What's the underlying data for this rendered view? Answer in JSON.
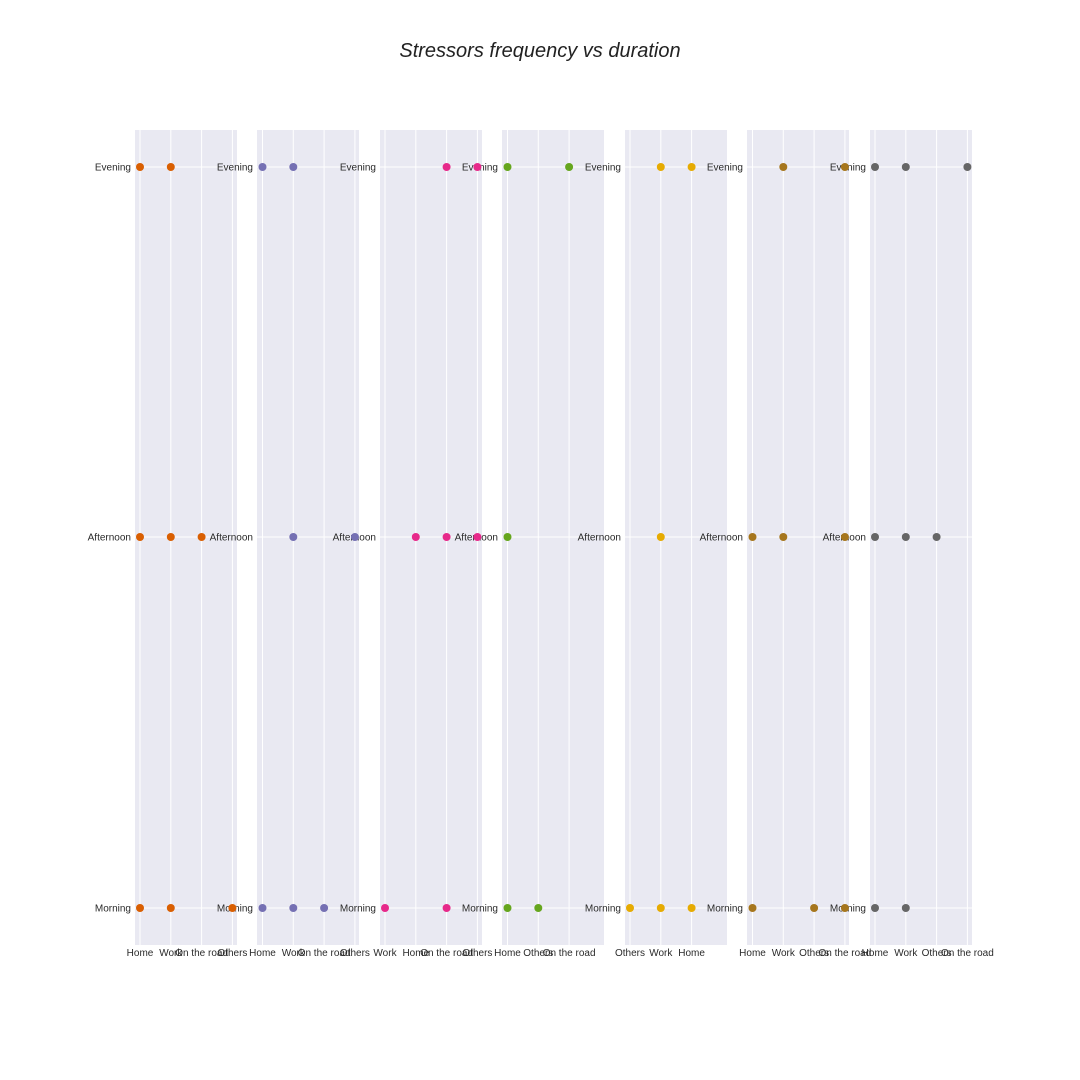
{
  "chart_data": {
    "type": "scatter",
    "title": "Stressors frequency vs duration",
    "y_categories": [
      "Morning",
      "Afternoon",
      "Evening"
    ],
    "background_color": "#e9e9f2",
    "grid": true,
    "panels": [
      {
        "color": "#d95f02",
        "x_categories": [
          "Home",
          "Work",
          "On the road",
          "Others"
        ],
        "points": [
          {
            "x": "Home",
            "y": "Evening"
          },
          {
            "x": "Work",
            "y": "Evening"
          },
          {
            "x": "Home",
            "y": "Afternoon"
          },
          {
            "x": "Work",
            "y": "Afternoon"
          },
          {
            "x": "On the road",
            "y": "Afternoon"
          },
          {
            "x": "Home",
            "y": "Morning"
          },
          {
            "x": "Work",
            "y": "Morning"
          },
          {
            "x": "Others",
            "y": "Morning"
          }
        ]
      },
      {
        "color": "#7570b3",
        "x_categories": [
          "Home",
          "Work",
          "On the road",
          "Others"
        ],
        "points": [
          {
            "x": "Home",
            "y": "Evening"
          },
          {
            "x": "Work",
            "y": "Evening"
          },
          {
            "x": "Work",
            "y": "Afternoon"
          },
          {
            "x": "Others",
            "y": "Afternoon"
          },
          {
            "x": "Home",
            "y": "Morning"
          },
          {
            "x": "Work",
            "y": "Morning"
          },
          {
            "x": "On the road",
            "y": "Morning"
          }
        ]
      },
      {
        "color": "#e7298a",
        "x_categories": [
          "Work",
          "Home",
          "On the road",
          "Others"
        ],
        "points": [
          {
            "x": "On the road",
            "y": "Evening"
          },
          {
            "x": "Others",
            "y": "Evening"
          },
          {
            "x": "Home",
            "y": "Afternoon"
          },
          {
            "x": "On the road",
            "y": "Afternoon"
          },
          {
            "x": "Others",
            "y": "Afternoon"
          },
          {
            "x": "Work",
            "y": "Morning"
          },
          {
            "x": "On the road",
            "y": "Morning"
          }
        ]
      },
      {
        "color": "#66a61e",
        "x_categories": [
          "Home",
          "Others",
          "On the road"
        ],
        "points": [
          {
            "x": "Home",
            "y": "Evening"
          },
          {
            "x": "On the road",
            "y": "Evening"
          },
          {
            "x": "Home",
            "y": "Afternoon"
          },
          {
            "x": "Home",
            "y": "Morning"
          },
          {
            "x": "Others",
            "y": "Morning"
          }
        ]
      },
      {
        "color": "#e6ab02",
        "x_categories": [
          "Others",
          "Work",
          "Home"
        ],
        "points": [
          {
            "x": "Work",
            "y": "Evening"
          },
          {
            "x": "Home",
            "y": "Evening"
          },
          {
            "x": "Work",
            "y": "Afternoon"
          },
          {
            "x": "Others",
            "y": "Morning"
          },
          {
            "x": "Work",
            "y": "Morning"
          },
          {
            "x": "Home",
            "y": "Morning"
          }
        ]
      },
      {
        "color": "#a6761d",
        "x_categories": [
          "Home",
          "Work",
          "Others",
          "On the road"
        ],
        "points": [
          {
            "x": "Work",
            "y": "Evening"
          },
          {
            "x": "On the road",
            "y": "Evening"
          },
          {
            "x": "Home",
            "y": "Afternoon"
          },
          {
            "x": "Work",
            "y": "Afternoon"
          },
          {
            "x": "On the road",
            "y": "Afternoon"
          },
          {
            "x": "Home",
            "y": "Morning"
          },
          {
            "x": "Others",
            "y": "Morning"
          },
          {
            "x": "On the road",
            "y": "Morning"
          }
        ]
      },
      {
        "color": "#666666",
        "x_categories": [
          "Home",
          "Work",
          "Others",
          "On the road"
        ],
        "points": [
          {
            "x": "Home",
            "y": "Evening"
          },
          {
            "x": "Work",
            "y": "Evening"
          },
          {
            "x": "On the road",
            "y": "Evening"
          },
          {
            "x": "Home",
            "y": "Afternoon"
          },
          {
            "x": "Work",
            "y": "Afternoon"
          },
          {
            "x": "Others",
            "y": "Afternoon"
          },
          {
            "x": "Home",
            "y": "Morning"
          },
          {
            "x": "Work",
            "y": "Morning"
          }
        ]
      }
    ]
  }
}
